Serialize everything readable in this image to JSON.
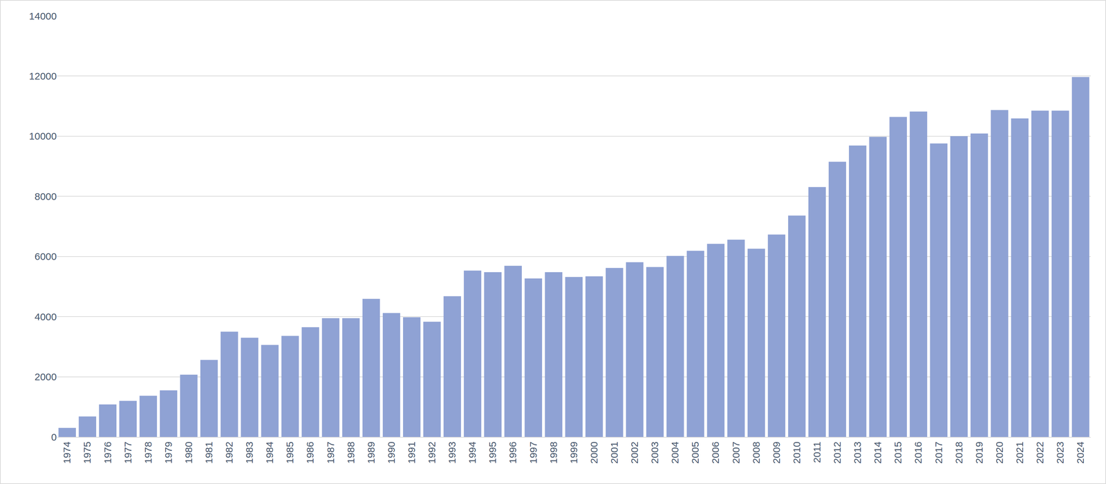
{
  "chart_data": {
    "type": "bar",
    "categories": [
      "1974",
      "1975",
      "1976",
      "1977",
      "1978",
      "1979",
      "1980",
      "1981",
      "1982",
      "1983",
      "1984",
      "1985",
      "1986",
      "1987",
      "1988",
      "1989",
      "1990",
      "1991",
      "1992",
      "1993",
      "1994",
      "1995",
      "1996",
      "1997",
      "1998",
      "1999",
      "2000",
      "2001",
      "2002",
      "2003",
      "2004",
      "2005",
      "2006",
      "2007",
      "2008",
      "2009",
      "2010",
      "2011",
      "2012",
      "2013",
      "2014",
      "2015",
      "2016",
      "2017",
      "2018",
      "2019",
      "2020",
      "2021",
      "2022",
      "2023",
      "2024"
    ],
    "values": [
      300,
      680,
      1080,
      1200,
      1370,
      1550,
      2070,
      2560,
      3500,
      3300,
      3060,
      3360,
      3650,
      3950,
      3950,
      4590,
      4120,
      3980,
      3830,
      4680,
      5530,
      5480,
      5690,
      5270,
      5480,
      5320,
      5340,
      5620,
      5810,
      5650,
      6020,
      6190,
      6420,
      6560,
      6260,
      6730,
      7360,
      8310,
      9150,
      9690,
      9980,
      10640,
      10820,
      9760,
      10000,
      10090,
      10870,
      10590,
      10850,
      10850,
      11970
    ],
    "color": "#8fa2d4",
    "ylim": [
      0,
      14000
    ],
    "yticks": [
      0,
      2000,
      4000,
      6000,
      8000,
      10000,
      12000,
      14000
    ],
    "grid": true
  }
}
